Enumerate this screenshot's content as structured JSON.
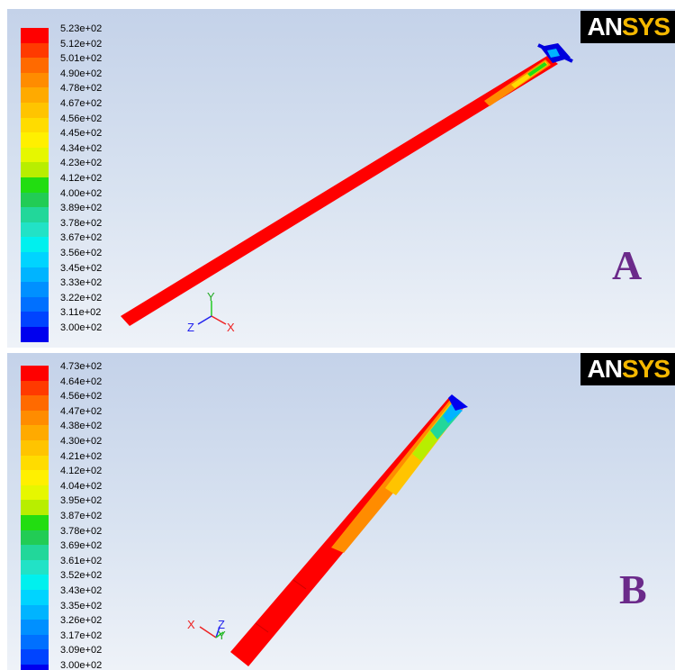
{
  "panels": [
    {
      "id": "A",
      "letter": "A",
      "logo": {
        "prefix": "AN",
        "suffix": "SYS"
      },
      "legend_labels": [
        "5.23e+02",
        "5.12e+02",
        "5.01e+02",
        "4.90e+02",
        "4.78e+02",
        "4.67e+02",
        "4.56e+02",
        "4.45e+02",
        "4.34e+02",
        "4.23e+02",
        "4.12e+02",
        "4.00e+02",
        "3.89e+02",
        "3.78e+02",
        "3.67e+02",
        "3.56e+02",
        "3.45e+02",
        "3.33e+02",
        "3.22e+02",
        "3.11e+02",
        "3.00e+02"
      ],
      "axes": {
        "x": "X",
        "y": "Y",
        "z": "Z"
      }
    },
    {
      "id": "B",
      "letter": "B",
      "logo": {
        "prefix": "AN",
        "suffix": "SYS"
      },
      "legend_labels": [
        "4.73e+02",
        "4.64e+02",
        "4.56e+02",
        "4.47e+02",
        "4.38e+02",
        "4.30e+02",
        "4.21e+02",
        "4.12e+02",
        "4.04e+02",
        "3.95e+02",
        "3.87e+02",
        "3.78e+02",
        "3.69e+02",
        "3.61e+02",
        "3.52e+02",
        "3.43e+02",
        "3.35e+02",
        "3.26e+02",
        "3.17e+02",
        "3.09e+02",
        "3.00e+02"
      ],
      "axes": {
        "x": "X",
        "y": "Y",
        "z": "Z"
      }
    }
  ],
  "colormap": [
    "#ff0000",
    "#ff3a00",
    "#ff6a00",
    "#ff8c00",
    "#ffaa00",
    "#ffc400",
    "#ffdc00",
    "#fff000",
    "#e6f700",
    "#b8ee00",
    "#22dd11",
    "#22cc55",
    "#22d79a",
    "#22e2c6",
    "#00f0ee",
    "#00d4ff",
    "#00b4ff",
    "#0090ff",
    "#0070ff",
    "#0044ff",
    "#0000ee"
  ]
}
